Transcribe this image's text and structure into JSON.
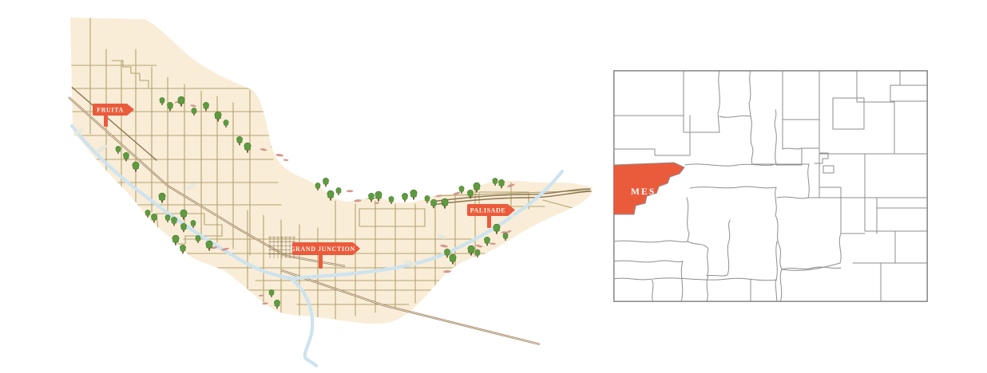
{
  "maps": {
    "valley": {
      "alt": "Illustrated map of the Grand Valley with Fruita, Grand Junction and Palisade",
      "signs": {
        "fruita": "FRUITA",
        "grand_junction": "GRAND JUNCTION",
        "palisade": "PALISADE"
      },
      "icons": [
        "tree-icon",
        "orchard-patch-icon",
        "city-sign-icon",
        "river-line",
        "road-line",
        "railroad-line"
      ],
      "colors": {
        "valley_fill": "#f9edd8",
        "road": "#b3a46c",
        "highway": "#8c7550",
        "railroad": "#8b6f4c",
        "river": "#cde3ef",
        "island": "#e6e9db",
        "tree": "#5e9b3f",
        "tree_outline": "#3f7227",
        "trunk": "#7a5c3e",
        "orchard": "#d4988d",
        "sign": "#ea5b3c",
        "sign_text": "#fdf6ec"
      }
    },
    "colorado": {
      "alt": "Colorado county map with Mesa County highlighted",
      "highlighted_county_label": "MESA",
      "colors": {
        "fill": "#ffffff",
        "border": "#8e8e8e",
        "highlight": "#ea5b3c",
        "label_text": "#ffffff"
      }
    }
  }
}
